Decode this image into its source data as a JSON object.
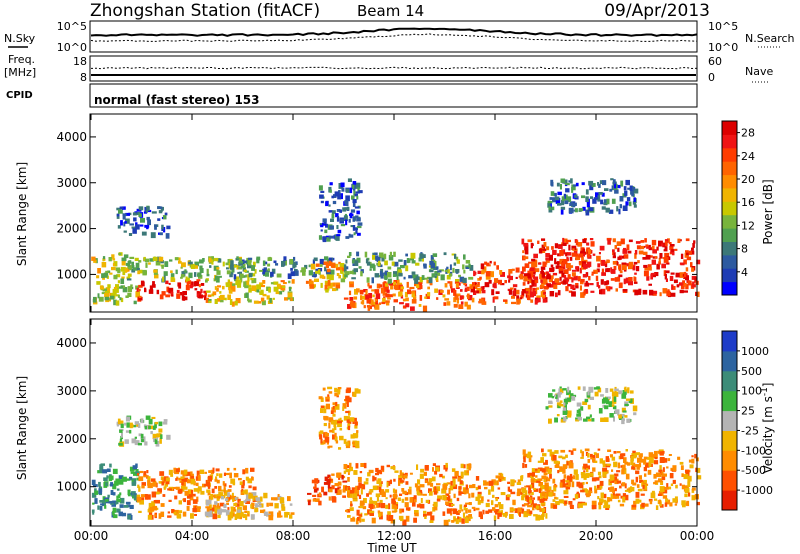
{
  "header": {
    "station": "Zhongshan Station (fitACF)",
    "beam": "Beam 14",
    "date": "09/Apr/2013"
  },
  "top_panels": {
    "nsky_label": "N.Sky",
    "nsky_ticks": [
      "10^5",
      "10^0"
    ],
    "nsearch_label": "N.Search",
    "nsearch_ticks": [
      "10^5",
      "10^0"
    ],
    "freq_label_1": "Freq.",
    "freq_label_2": "[MHz]",
    "freq_ticks": [
      "18",
      "8"
    ],
    "nave_label": "Nave",
    "nave_ticks": [
      "60",
      "0"
    ],
    "cpid_label": "CPID",
    "cpid_text": "normal (fast stereo) 153"
  },
  "chart_data": [
    {
      "type": "heatmap",
      "title": "",
      "quantity": "Power",
      "ylabel": "Slant Range [km]",
      "xlabel": "Time UT",
      "ylim": [
        180,
        4500
      ],
      "yticks": [
        "1000",
        "2000",
        "3000",
        "4000"
      ],
      "xlim_hours": [
        0,
        24
      ],
      "xticks": [
        "00:00",
        "04:00",
        "08:00",
        "12:00",
        "16:00",
        "20:00",
        "00:00"
      ],
      "colorbar": {
        "label": "Power [dB]",
        "ticks": [
          "4",
          "8",
          "12",
          "16",
          "20",
          "24",
          "28"
        ],
        "range": [
          0,
          30
        ],
        "colors": [
          "#0000ff",
          "#1e3cb4",
          "#2d5aa0",
          "#3c7878",
          "#50a050",
          "#78b43c",
          "#c8c800",
          "#f0b400",
          "#ff8c00",
          "#ff6400",
          "#ff3c00",
          "#f01414",
          "#dc0000"
        ]
      },
      "echo_regions": [
        {
          "t": [
            0.0,
            1.8
          ],
          "r": [
            400,
            1500
          ],
          "level": 14
        },
        {
          "t": [
            1.8,
            4.5
          ],
          "r": [
            500,
            900
          ],
          "level": 27
        },
        {
          "t": [
            1.8,
            6.5
          ],
          "r": [
            900,
            1400
          ],
          "level": 12
        },
        {
          "t": [
            4.5,
            8.0
          ],
          "r": [
            400,
            900
          ],
          "level": 16
        },
        {
          "t": [
            5.5,
            9.5
          ],
          "r": [
            1000,
            1400
          ],
          "level": 8
        },
        {
          "t": [
            8.5,
            10.0
          ],
          "r": [
            700,
            1300
          ],
          "level": 18
        },
        {
          "t": [
            9.0,
            10.6
          ],
          "r": [
            1800,
            3100
          ],
          "level": 6
        },
        {
          "t": [
            10.0,
            15.0
          ],
          "r": [
            300,
            900
          ],
          "level": 22
        },
        {
          "t": [
            10.0,
            15.0
          ],
          "r": [
            900,
            1500
          ],
          "level": 10
        },
        {
          "t": [
            15.0,
            18.0
          ],
          "r": [
            400,
            1300
          ],
          "level": 25
        },
        {
          "t": [
            17.0,
            24.0
          ],
          "r": [
            600,
            1800
          ],
          "level": 26
        },
        {
          "t": [
            18.0,
            21.5
          ],
          "r": [
            2400,
            3100
          ],
          "level": 6
        },
        {
          "t": [
            1.0,
            3.0
          ],
          "r": [
            1900,
            2500
          ],
          "level": 5
        }
      ]
    },
    {
      "type": "heatmap",
      "title": "",
      "quantity": "Velocity",
      "ylabel": "Slant Range [km]",
      "xlabel": "Time UT",
      "ylim": [
        180,
        4500
      ],
      "yticks": [
        "1000",
        "2000",
        "3000",
        "4000"
      ],
      "xlim_hours": [
        0,
        24
      ],
      "xticks": [
        "00:00",
        "04:00",
        "08:00",
        "12:00",
        "16:00",
        "20:00",
        "00:00"
      ],
      "colorbar": {
        "label": "Velocity [m s",
        "label_sup": "-1",
        "label_end": "]",
        "ticks": [
          "1000",
          "500",
          "100",
          "25",
          "-25",
          "-100",
          "-500",
          "-1000"
        ],
        "colors": [
          "#1e3cc8",
          "#2d64a0",
          "#3c8c78",
          "#3cb43c",
          "#b4b4b4",
          "#f0b400",
          "#ff8c00",
          "#ff5000",
          "#e61e00"
        ]
      },
      "echo_regions": [
        {
          "t": [
            0.0,
            1.8
          ],
          "r": [
            400,
            1500
          ],
          "level": 2
        },
        {
          "t": [
            1.8,
            6.5
          ],
          "r": [
            400,
            1400
          ],
          "level": 6
        },
        {
          "t": [
            4.5,
            8.0
          ],
          "r": [
            400,
            900
          ],
          "level": 5
        },
        {
          "t": [
            8.5,
            10.0
          ],
          "r": [
            700,
            1300
          ],
          "level": 7
        },
        {
          "t": [
            9.0,
            10.6
          ],
          "r": [
            1800,
            3100
          ],
          "level": 6
        },
        {
          "t": [
            10.0,
            15.0
          ],
          "r": [
            300,
            1500
          ],
          "level": 6
        },
        {
          "t": [
            15.0,
            18.0
          ],
          "r": [
            400,
            1300
          ],
          "level": 6
        },
        {
          "t": [
            17.0,
            24.0
          ],
          "r": [
            600,
            1800
          ],
          "level": 6
        },
        {
          "t": [
            18.0,
            21.5
          ],
          "r": [
            2400,
            3100
          ],
          "level": 4
        },
        {
          "t": [
            1.0,
            3.0
          ],
          "r": [
            1900,
            2500
          ],
          "level": 4
        }
      ]
    }
  ]
}
